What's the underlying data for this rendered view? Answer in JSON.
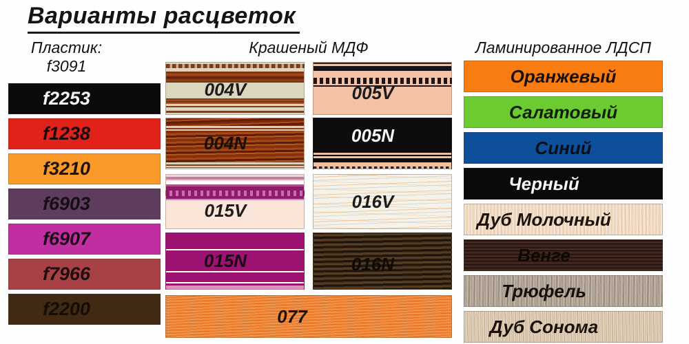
{
  "title": "Варианты расцветок",
  "plastic": {
    "header_line1": "Пластик:",
    "header_line2": "f3091",
    "swatches": [
      {
        "label": "f2253",
        "bg": "#0d0a0c",
        "fg": "#f5f3f4"
      },
      {
        "label": "f1238",
        "bg": "#e0221a",
        "fg": "#1a0806"
      },
      {
        "label": "f3210",
        "bg": "#fb9a28",
        "fg": "#1c1206"
      },
      {
        "label": "f6903",
        "bg": "#5d3c5e",
        "fg": "#170e18"
      },
      {
        "label": "f6907",
        "bg": "#c02fa2",
        "fg": "#1c0a17"
      },
      {
        "label": "f7966",
        "bg": "#a84145",
        "fg": "#1d0d0e"
      },
      {
        "label": "f2200",
        "bg": "#402a13",
        "fg": "#140d05"
      }
    ]
  },
  "mdf": {
    "header": "Крашеный МДФ",
    "swatches": [
      {
        "label": "004V",
        "base": "#dcd6bf",
        "fg": "#1c1c1c",
        "style": "cream-with-wood-moulding-bands"
      },
      {
        "label": "005V",
        "base": "#f4c2a4",
        "fg": "#1c1c1c",
        "style": "peach-with-black-moulding-bands"
      },
      {
        "label": "004N",
        "base": "#d8d2bb",
        "fg": "#161006",
        "style": "mahogany-wood-moulding"
      },
      {
        "label": "005N",
        "base": "#0f0c0e",
        "fg": "#f7f5f6",
        "style": "black-with-peach-stripes"
      },
      {
        "label": "015V",
        "base": "#fbe5d9",
        "fg": "#1c1c1c",
        "style": "pale-pink-with-magenta-moulding-band"
      },
      {
        "label": "016V",
        "base": "#f5f2e9",
        "fg": "#1c1c1c",
        "style": "light-wavy-wood-grain"
      },
      {
        "label": "015N",
        "base": "#9c1372",
        "fg": "#1a0512",
        "style": "magenta-with-white-stripes"
      },
      {
        "label": "016N",
        "base": "#46331f",
        "fg": "#0f0a04",
        "style": "dark-wood-grain"
      },
      {
        "label": "077",
        "base": "#ee8031",
        "fg": "#1c1206",
        "style": "orange-wavy-texture"
      }
    ]
  },
  "ldsp": {
    "header": "Ламинированное ЛДСП",
    "swatches": [
      {
        "label": "Оранжевый",
        "bg": "#f87c0f",
        "fg": "#1a1006"
      },
      {
        "label": "Салатовый",
        "bg": "#6ccb31",
        "fg": "#102005"
      },
      {
        "label": "Синий",
        "bg": "#0e4f9b",
        "fg": "#060e19"
      },
      {
        "label": "Черный",
        "bg": "#0b090b",
        "fg": "#f6f4f5"
      },
      {
        "label": "Дуб Молочный",
        "bg": "#eed6bd",
        "fg": "#1c140c",
        "style": "milk-oak-wood"
      },
      {
        "label": "Венге",
        "bg": "#3a221b",
        "fg": "#100804",
        "style": "wenge-wood"
      },
      {
        "label": "Трюфель",
        "bg": "#b2a292",
        "fg": "#17100a",
        "style": "truffle-wood"
      },
      {
        "label": "Дуб Сонома",
        "bg": "#d8c5a9",
        "fg": "#1a120a",
        "style": "sonoma-oak-wood"
      }
    ]
  }
}
